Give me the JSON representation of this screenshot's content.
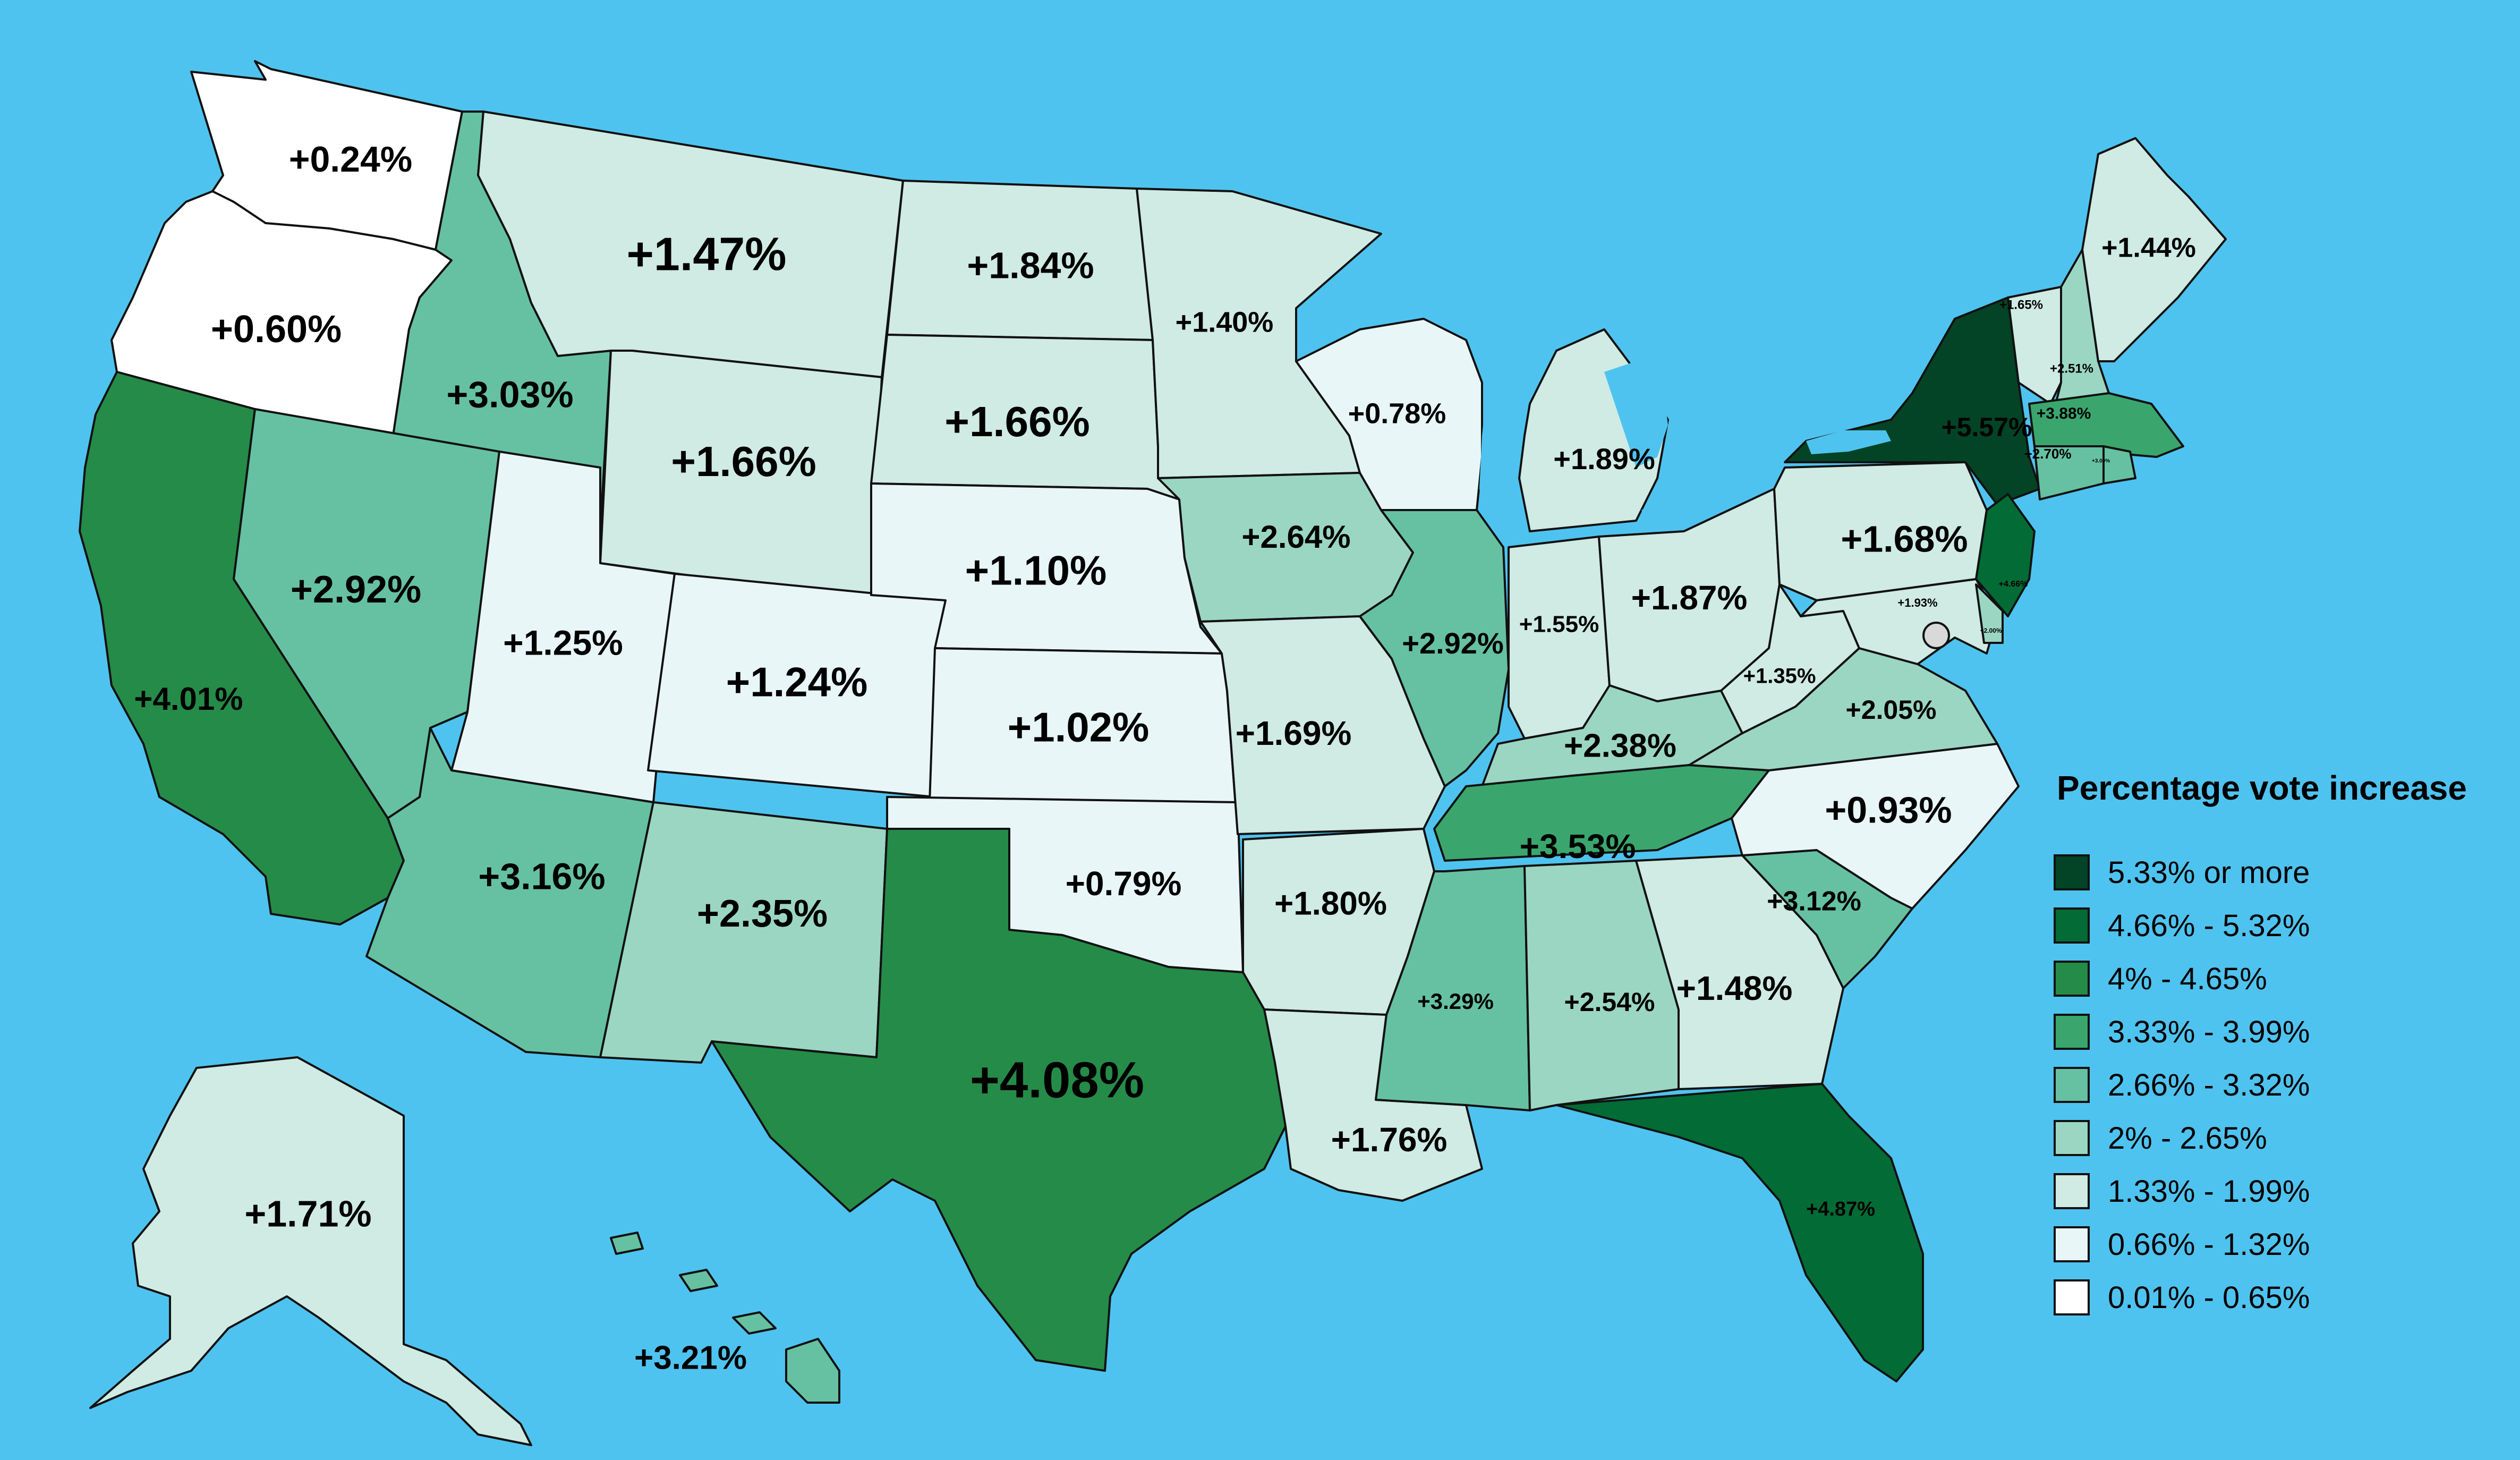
{
  "colors": {
    "background": "#4fc3ef",
    "bins": [
      "#024425",
      "#036b35",
      "#258b49",
      "#3aa66e",
      "#66c1a2",
      "#9bd6c3",
      "#cfebe3",
      "#e8f6f8",
      "#ffffff"
    ],
    "lake": "#4fc3ef",
    "dc_marker": "#d9d9d9"
  },
  "legend": {
    "title": "Percentage vote increase",
    "items": [
      {
        "label": "5.33% or more",
        "bin": 0
      },
      {
        "label": "4.66% - 5.32%",
        "bin": 1
      },
      {
        "label": "4% - 4.65%",
        "bin": 2
      },
      {
        "label": "3.33% - 3.99%",
        "bin": 3
      },
      {
        "label": "2.66% - 3.32%",
        "bin": 4
      },
      {
        "label": "2% - 2.65%",
        "bin": 5
      },
      {
        "label": "1.33% - 1.99%",
        "bin": 6
      },
      {
        "label": "0.66% - 1.32%",
        "bin": 7
      },
      {
        "label": "0.01% - 0.65%",
        "bin": 8
      }
    ]
  },
  "states": [
    {
      "id": "WA",
      "value": "+0.24%",
      "bin": 8
    },
    {
      "id": "OR",
      "value": "+0.60%",
      "bin": 8
    },
    {
      "id": "CA",
      "value": "+4.01%",
      "bin": 2
    },
    {
      "id": "ID",
      "value": "+3.03%",
      "bin": 4
    },
    {
      "id": "NV",
      "value": "+2.92%",
      "bin": 4
    },
    {
      "id": "MT",
      "value": "+1.47%",
      "bin": 6
    },
    {
      "id": "WY",
      "value": "+1.66%",
      "bin": 6
    },
    {
      "id": "UT",
      "value": "+1.25%",
      "bin": 7
    },
    {
      "id": "AZ",
      "value": "+3.16%",
      "bin": 4
    },
    {
      "id": "CO",
      "value": "+1.24%",
      "bin": 7
    },
    {
      "id": "NM",
      "value": "+2.35%",
      "bin": 5
    },
    {
      "id": "ND",
      "value": "+1.84%",
      "bin": 6
    },
    {
      "id": "SD",
      "value": "+1.66%",
      "bin": 6
    },
    {
      "id": "NE",
      "value": "+1.10%",
      "bin": 7
    },
    {
      "id": "KS",
      "value": "+1.02%",
      "bin": 7
    },
    {
      "id": "OK",
      "value": "+0.79%",
      "bin": 7
    },
    {
      "id": "TX",
      "value": "+4.08%",
      "bin": 2
    },
    {
      "id": "MN",
      "value": "+1.40%",
      "bin": 6
    },
    {
      "id": "IA",
      "value": "+2.64%",
      "bin": 5
    },
    {
      "id": "MO",
      "value": "+1.69%",
      "bin": 6
    },
    {
      "id": "AR",
      "value": "+1.80%",
      "bin": 6
    },
    {
      "id": "LA",
      "value": "+1.76%",
      "bin": 6
    },
    {
      "id": "WI",
      "value": "+0.78%",
      "bin": 7
    },
    {
      "id": "IL",
      "value": "+2.92%",
      "bin": 4
    },
    {
      "id": "MI",
      "value": "+1.89%",
      "bin": 6
    },
    {
      "id": "IN",
      "value": "+1.55%",
      "bin": 6
    },
    {
      "id": "OH",
      "value": "+1.87%",
      "bin": 6
    },
    {
      "id": "KY",
      "value": "+2.38%",
      "bin": 5
    },
    {
      "id": "TN",
      "value": "+3.53%",
      "bin": 3
    },
    {
      "id": "MS",
      "value": "+3.29%",
      "bin": 4
    },
    {
      "id": "AL",
      "value": "+2.54%",
      "bin": 5
    },
    {
      "id": "GA",
      "value": "+1.48%",
      "bin": 6
    },
    {
      "id": "FL",
      "value": "+4.87%",
      "bin": 1
    },
    {
      "id": "SC",
      "value": "+3.12%",
      "bin": 4
    },
    {
      "id": "NC",
      "value": "+0.93%",
      "bin": 7
    },
    {
      "id": "VA",
      "value": "+2.05%",
      "bin": 5
    },
    {
      "id": "WV",
      "value": "+1.35%",
      "bin": 6
    },
    {
      "id": "PA",
      "value": "+1.68%",
      "bin": 6
    },
    {
      "id": "NY",
      "value": "+5.57%",
      "bin": 0
    },
    {
      "id": "NJ",
      "value": "+4.66%",
      "bin": 1
    },
    {
      "id": "MD",
      "value": "+1.93%",
      "bin": 6
    },
    {
      "id": "DE",
      "value": "+2.00%",
      "bin": 5
    },
    {
      "id": "VT",
      "value": "+1.65%",
      "bin": 6
    },
    {
      "id": "NH",
      "value": "+2.51%",
      "bin": 5
    },
    {
      "id": "ME",
      "value": "+1.44%",
      "bin": 6
    },
    {
      "id": "MA",
      "value": "+3.88%",
      "bin": 3
    },
    {
      "id": "CT",
      "value": "+2.70%",
      "bin": 4
    },
    {
      "id": "RI",
      "value": "+3.00%",
      "bin": 4
    },
    {
      "id": "AK",
      "value": "+1.71%",
      "bin": 6
    },
    {
      "id": "HI",
      "value": "+3.21%",
      "bin": 4
    }
  ]
}
